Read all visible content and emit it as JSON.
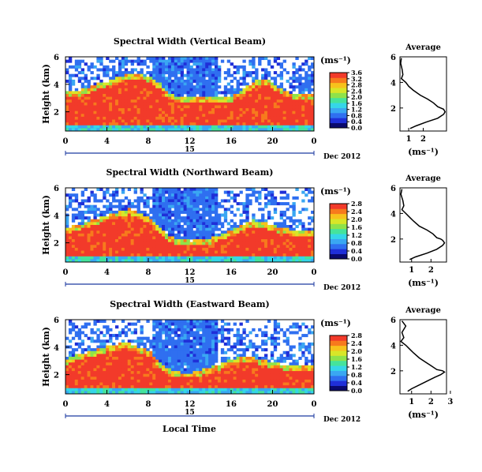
{
  "figure": {
    "xlabel": "Local Time",
    "date_day": "15",
    "date_label": "Dec 2012",
    "unit_label": "(ms⁻¹)",
    "avg_title": "Average",
    "avg_xlabel": "(ms⁻¹)"
  },
  "colors": {
    "colormap": [
      "#0a0a6e",
      "#1f2fd8",
      "#2f6ff0",
      "#3aa7f2",
      "#35d6e8",
      "#45e39c",
      "#8fe24a",
      "#d8e628",
      "#f7c21c",
      "#f77a1d",
      "#f23a2a"
    ],
    "line": "#000000",
    "date_bar": "#1c3aa0"
  },
  "chart_data": [
    {
      "type": "heatmap",
      "title": "Spectral Width (Vertical Beam)",
      "ylabel": "Height (km)",
      "xlim": [
        0,
        24
      ],
      "ylim": [
        0.6,
        6
      ],
      "xticks": [
        "0",
        "4",
        "8",
        "12",
        "16",
        "20",
        "0"
      ],
      "yticks": [
        "2",
        "4",
        "6"
      ],
      "colorbar": {
        "range": [
          0,
          3.6
        ],
        "ticks": [
          "3.6",
          "3.2",
          "2.8",
          "2.4",
          "2.0",
          "1.6",
          "1.2",
          "0.8",
          "0.4",
          "0.0"
        ]
      },
      "boundary_layer_top_km": [
        3.2,
        3.3,
        3.5,
        3.8,
        4.0,
        4.3,
        4.5,
        4.5,
        4.3,
        3.8,
        3.0,
        2.8,
        2.8,
        2.9,
        2.8,
        2.8,
        2.9,
        3.4,
        3.9,
        4.2,
        3.8,
        3.2,
        3.1,
        3.0
      ],
      "average": {
        "type": "line",
        "title": "Average",
        "xlim": [
          0.4,
          3.6
        ],
        "ylim": [
          0.2,
          6
        ],
        "xticks": [
          "1",
          "2"
        ],
        "yticks": [
          "2",
          "4",
          "6"
        ],
        "x": [
          0.5,
          0.45,
          0.55,
          0.6,
          0.5,
          0.8,
          1.0,
          1.3,
          1.8,
          2.3,
          2.7,
          3.0,
          3.2,
          3.4,
          3.5,
          3.4,
          3.0,
          2.2,
          1.5,
          1.1
        ],
        "y": [
          5.9,
          5.5,
          5.0,
          4.6,
          4.3,
          4.0,
          3.7,
          3.4,
          3.0,
          2.7,
          2.4,
          2.1,
          2.0,
          1.9,
          1.7,
          1.5,
          1.2,
          0.9,
          0.6,
          0.4
        ]
      }
    },
    {
      "type": "heatmap",
      "title": "Spectral Width (Northward Beam)",
      "ylabel": "Height (km)",
      "xlim": [
        0,
        24
      ],
      "ylim": [
        0.6,
        6
      ],
      "xticks": [
        "0",
        "4",
        "8",
        "12",
        "16",
        "20",
        "0"
      ],
      "yticks": [
        "2",
        "4",
        "6"
      ],
      "colorbar": {
        "range": [
          0,
          2.8
        ],
        "ticks": [
          "2.8",
          "2.4",
          "2.0",
          "1.6",
          "1.2",
          "0.8",
          "0.4",
          "0.0"
        ]
      },
      "boundary_layer_top_km": [
        2.9,
        3.0,
        3.3,
        3.5,
        3.8,
        4.0,
        4.2,
        3.9,
        3.6,
        2.8,
        2.2,
        2.0,
        1.9,
        2.0,
        2.1,
        2.4,
        2.7,
        3.1,
        3.4,
        3.2,
        3.0,
        2.8,
        2.6,
        2.6
      ],
      "average": {
        "type": "line",
        "title": "Average",
        "xlim": [
          0.4,
          2.8
        ],
        "ylim": [
          0.2,
          6
        ],
        "xticks": [
          "1",
          "2"
        ],
        "yticks": [
          "2",
          "4",
          "6"
        ],
        "x": [
          0.5,
          0.45,
          0.55,
          0.6,
          0.5,
          0.7,
          0.9,
          1.1,
          1.4,
          1.8,
          2.1,
          2.3,
          2.5,
          2.6,
          2.7,
          2.6,
          2.3,
          1.8,
          1.2,
          0.9
        ],
        "y": [
          5.9,
          5.5,
          5.0,
          4.6,
          4.3,
          4.0,
          3.7,
          3.4,
          3.0,
          2.7,
          2.4,
          2.1,
          2.0,
          1.9,
          1.7,
          1.5,
          1.2,
          0.9,
          0.6,
          0.4
        ]
      }
    },
    {
      "type": "heatmap",
      "title": "Spectral Width (Eastward Beam)",
      "ylabel": "Height (km)",
      "xlim": [
        0,
        24
      ],
      "ylim": [
        0.6,
        6
      ],
      "xticks": [
        "0",
        "4",
        "8",
        "12",
        "16",
        "20",
        "0"
      ],
      "yticks": [
        "2",
        "4",
        "6"
      ],
      "colorbar": {
        "range": [
          0,
          2.8
        ],
        "ticks": [
          "2.8",
          "2.4",
          "2.0",
          "1.6",
          "1.2",
          "0.8",
          "0.4",
          "0.0"
        ]
      },
      "boundary_layer_top_km": [
        2.9,
        3.2,
        3.4,
        3.6,
        3.8,
        4.0,
        4.0,
        3.7,
        3.5,
        2.6,
        2.1,
        1.9,
        1.9,
        2.1,
        2.3,
        2.6,
        2.9,
        3.1,
        3.0,
        2.8,
        2.6,
        2.5,
        2.4,
        2.4
      ],
      "average": {
        "type": "line",
        "title": "Average",
        "xlim": [
          0.4,
          2.8
        ],
        "ylim": [
          0.2,
          6
        ],
        "xticks": [
          "1",
          "2",
          "3"
        ],
        "yticks": [
          "2",
          "4",
          "6"
        ],
        "x": [
          0.5,
          0.7,
          0.5,
          0.6,
          0.45,
          0.7,
          0.9,
          1.1,
          1.4,
          1.7,
          2.0,
          2.3,
          2.6,
          2.7,
          2.5,
          2.2,
          1.8,
          1.4,
          1.0,
          0.8
        ],
        "y": [
          5.9,
          5.5,
          5.0,
          4.6,
          4.3,
          4.0,
          3.7,
          3.4,
          3.0,
          2.7,
          2.4,
          2.1,
          2.0,
          1.9,
          1.7,
          1.5,
          1.2,
          0.9,
          0.6,
          0.4
        ]
      }
    }
  ]
}
